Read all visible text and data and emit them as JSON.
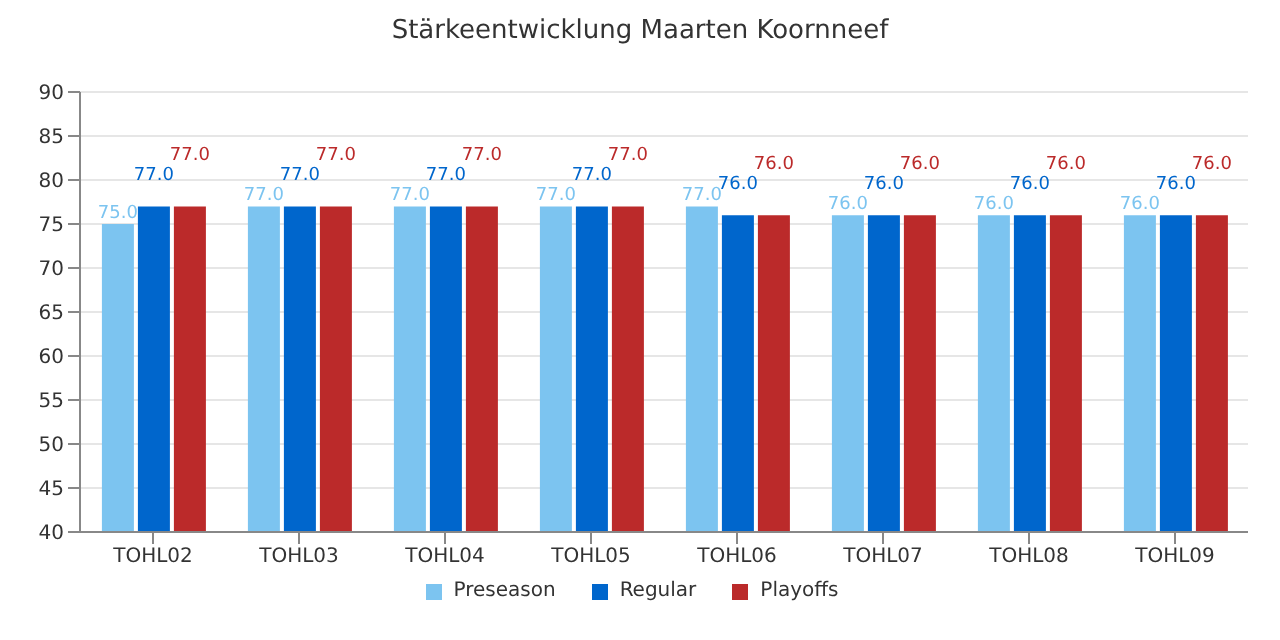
{
  "chart_data": {
    "type": "bar",
    "title": "Stärkeentwicklung Maarten Koornneef",
    "categories": [
      "TOHL02",
      "TOHL03",
      "TOHL04",
      "TOHL05",
      "TOHL06",
      "TOHL07",
      "TOHL08",
      "TOHL09"
    ],
    "series": [
      {
        "name": "Preseason",
        "color": "#7cc4f0",
        "values": [
          75,
          77,
          77,
          77,
          77,
          76,
          76,
          76
        ],
        "value_labels": [
          "75.0",
          "77.0",
          "77.0",
          "77.0",
          "77.0",
          "76.0",
          "76.0",
          "76.0"
        ]
      },
      {
        "name": "Regular",
        "color": "#0066cc",
        "values": [
          77,
          77,
          77,
          77,
          76,
          76,
          76,
          76
        ],
        "value_labels": [
          "77.0",
          "77.0",
          "77.0",
          "77.0",
          "76.0",
          "76.0",
          "76.0",
          "76.0"
        ]
      },
      {
        "name": "Playoffs",
        "color": "#bb2a2a",
        "values": [
          77,
          77,
          77,
          77,
          76,
          76,
          76,
          76
        ],
        "value_labels": [
          "77.0",
          "77.0",
          "77.0",
          "77.0",
          "76.0",
          "76.0",
          "76.0",
          "76.0"
        ]
      }
    ],
    "ylim": [
      40,
      90
    ],
    "yticks": [
      40,
      45,
      50,
      55,
      60,
      65,
      70,
      75,
      80,
      85,
      90
    ],
    "grid": "y",
    "legend": "bottom"
  }
}
